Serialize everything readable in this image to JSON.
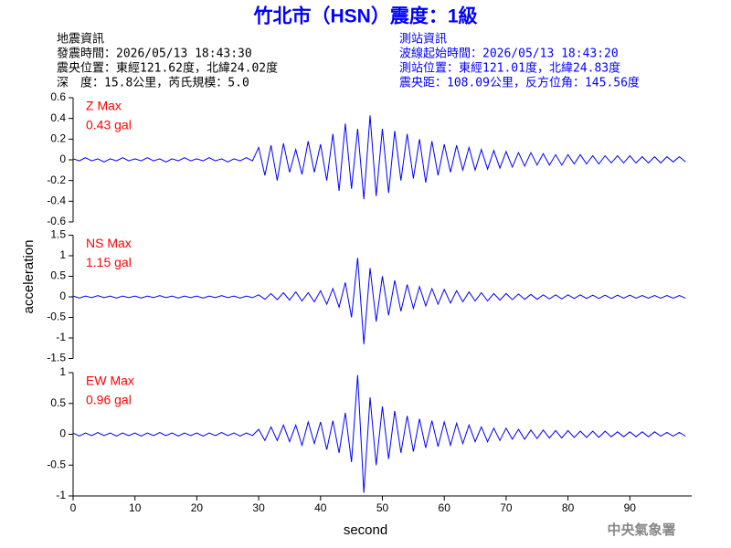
{
  "chart_data": {
    "type": "line",
    "title": "竹北市（HSN）震度：1級",
    "event_info": [
      "地震資訊",
      "發震時間：2026/05/13 18:43:30",
      "震央位置：東經121.62度，北緯24.02度",
      "深　度：15.8公里，芮氏規模：5.0"
    ],
    "station_info": [
      "測站資訊",
      "波線起始時間：2026/05/13 18:43:20",
      "測站位置：東經121.01度，北緯24.83度",
      "震央距：108.09公里，反方位角：145.56度"
    ],
    "xlabel": "second",
    "ylabel": "acceleration",
    "footer": "中央氣象署",
    "xlim": [
      0,
      100
    ],
    "xticks": [
      0,
      10,
      20,
      30,
      40,
      50,
      60,
      70,
      80,
      90
    ],
    "x": [
      0,
      1,
      2,
      3,
      4,
      5,
      6,
      7,
      8,
      9,
      10,
      11,
      12,
      13,
      14,
      15,
      16,
      17,
      18,
      19,
      20,
      21,
      22,
      23,
      24,
      25,
      26,
      27,
      28,
      29,
      30,
      31,
      32,
      33,
      34,
      35,
      36,
      37,
      38,
      39,
      40,
      41,
      42,
      43,
      44,
      45,
      46,
      47,
      48,
      49,
      50,
      51,
      52,
      53,
      54,
      55,
      56,
      57,
      58,
      59,
      60,
      61,
      62,
      63,
      64,
      65,
      66,
      67,
      68,
      69,
      70,
      71,
      72,
      73,
      74,
      75,
      76,
      77,
      78,
      79,
      80,
      81,
      82,
      83,
      84,
      85,
      86,
      87,
      88,
      89,
      90,
      91,
      92,
      93,
      94,
      95,
      96,
      97,
      98,
      99
    ],
    "panels": [
      {
        "name": "Z Max",
        "max_label": "0.43 gal",
        "color": "#0000ff",
        "ylim": [
          -0.6,
          0.6
        ],
        "yticks": [
          0.6,
          0.4,
          0.2,
          0,
          -0.2,
          -0.4,
          -0.6
        ],
        "values": [
          0.01,
          -0.01,
          0.02,
          -0.01,
          0.01,
          -0.02,
          0.01,
          -0.01,
          0.02,
          -0.01,
          0.01,
          -0.01,
          0.02,
          -0.01,
          0.01,
          -0.02,
          0.01,
          -0.01,
          0.02,
          -0.01,
          0.01,
          -0.01,
          0.02,
          -0.01,
          0.01,
          -0.02,
          0.01,
          -0.01,
          0.02,
          -0.01,
          0.12,
          -0.15,
          0.14,
          -0.2,
          0.16,
          -0.12,
          0.1,
          -0.14,
          0.18,
          -0.12,
          0.15,
          -0.2,
          0.25,
          -0.3,
          0.35,
          -0.28,
          0.3,
          -0.38,
          0.43,
          -0.35,
          0.3,
          -0.32,
          0.28,
          -0.2,
          0.25,
          -0.18,
          0.2,
          -0.22,
          0.18,
          -0.15,
          0.15,
          -0.12,
          0.14,
          -0.1,
          0.12,
          -0.1,
          0.1,
          -0.09,
          0.09,
          -0.08,
          0.08,
          -0.07,
          0.07,
          -0.06,
          0.07,
          -0.05,
          0.06,
          -0.05,
          0.05,
          -0.05,
          0.05,
          -0.04,
          0.05,
          -0.04,
          0.04,
          -0.04,
          0.04,
          -0.03,
          0.04,
          -0.03,
          0.04,
          -0.03,
          0.03,
          -0.03,
          0.03,
          -0.03,
          0.03,
          -0.02,
          0.03,
          -0.02
        ]
      },
      {
        "name": "NS Max",
        "max_label": "1.15 gal",
        "color": "#0000ff",
        "ylim": [
          -1.5,
          1.5
        ],
        "yticks": [
          1.5,
          1,
          0.5,
          0,
          -0.5,
          -1,
          -1.5
        ],
        "values": [
          0.02,
          -0.03,
          0.02,
          -0.02,
          0.03,
          -0.02,
          0.02,
          -0.03,
          0.02,
          -0.02,
          0.02,
          -0.03,
          0.02,
          -0.02,
          0.03,
          -0.02,
          0.02,
          -0.03,
          0.02,
          -0.02,
          0.02,
          -0.03,
          0.02,
          -0.02,
          0.03,
          -0.02,
          0.02,
          -0.03,
          0.02,
          -0.02,
          0.05,
          -0.06,
          0.08,
          -0.07,
          0.1,
          -0.08,
          0.12,
          -0.1,
          0.1,
          -0.12,
          0.15,
          -0.18,
          0.2,
          -0.25,
          0.35,
          -0.5,
          0.95,
          -1.15,
          0.7,
          -0.6,
          0.5,
          -0.45,
          0.4,
          -0.35,
          0.3,
          -0.28,
          0.25,
          -0.22,
          0.2,
          -0.18,
          0.18,
          -0.15,
          0.15,
          -0.12,
          0.12,
          -0.1,
          0.1,
          -0.1,
          0.08,
          -0.08,
          0.08,
          -0.07,
          0.07,
          -0.06,
          0.06,
          -0.06,
          0.05,
          -0.05,
          0.05,
          -0.05,
          0.05,
          -0.04,
          0.05,
          -0.04,
          0.04,
          -0.04,
          0.04,
          -0.04,
          0.04,
          -0.03,
          0.04,
          -0.03,
          0.03,
          -0.03,
          0.03,
          -0.03,
          0.03,
          -0.03,
          0.03,
          -0.03
        ]
      },
      {
        "name": "EW Max",
        "max_label": "0.96 gal",
        "color": "#0000ff",
        "ylim": [
          -1,
          1
        ],
        "yticks": [
          1,
          0.5,
          0,
          -0.5,
          -1
        ],
        "values": [
          0.02,
          -0.03,
          0.02,
          -0.02,
          0.03,
          -0.02,
          0.02,
          -0.03,
          0.02,
          -0.02,
          0.02,
          -0.03,
          0.02,
          -0.02,
          0.03,
          -0.02,
          0.02,
          -0.03,
          0.02,
          -0.02,
          0.02,
          -0.03,
          0.02,
          -0.02,
          0.03,
          -0.02,
          0.02,
          -0.03,
          0.02,
          -0.02,
          0.08,
          -0.1,
          0.12,
          -0.1,
          0.15,
          -0.12,
          0.15,
          -0.18,
          0.2,
          -0.15,
          0.2,
          -0.25,
          0.22,
          -0.3,
          0.35,
          -0.45,
          0.96,
          -0.95,
          0.6,
          -0.5,
          0.45,
          -0.4,
          0.38,
          -0.3,
          0.3,
          -0.28,
          0.25,
          -0.22,
          0.22,
          -0.2,
          0.2,
          -0.18,
          0.18,
          -0.15,
          0.15,
          -0.12,
          0.12,
          -0.12,
          0.1,
          -0.1,
          0.1,
          -0.08,
          0.08,
          -0.08,
          0.07,
          -0.07,
          0.07,
          -0.06,
          0.06,
          -0.06,
          0.06,
          -0.05,
          0.05,
          -0.05,
          0.05,
          -0.05,
          0.05,
          -0.04,
          0.04,
          -0.04,
          0.04,
          -0.04,
          0.04,
          -0.04,
          0.04,
          -0.03,
          0.03,
          -0.03,
          0.03,
          -0.03
        ]
      }
    ]
  }
}
